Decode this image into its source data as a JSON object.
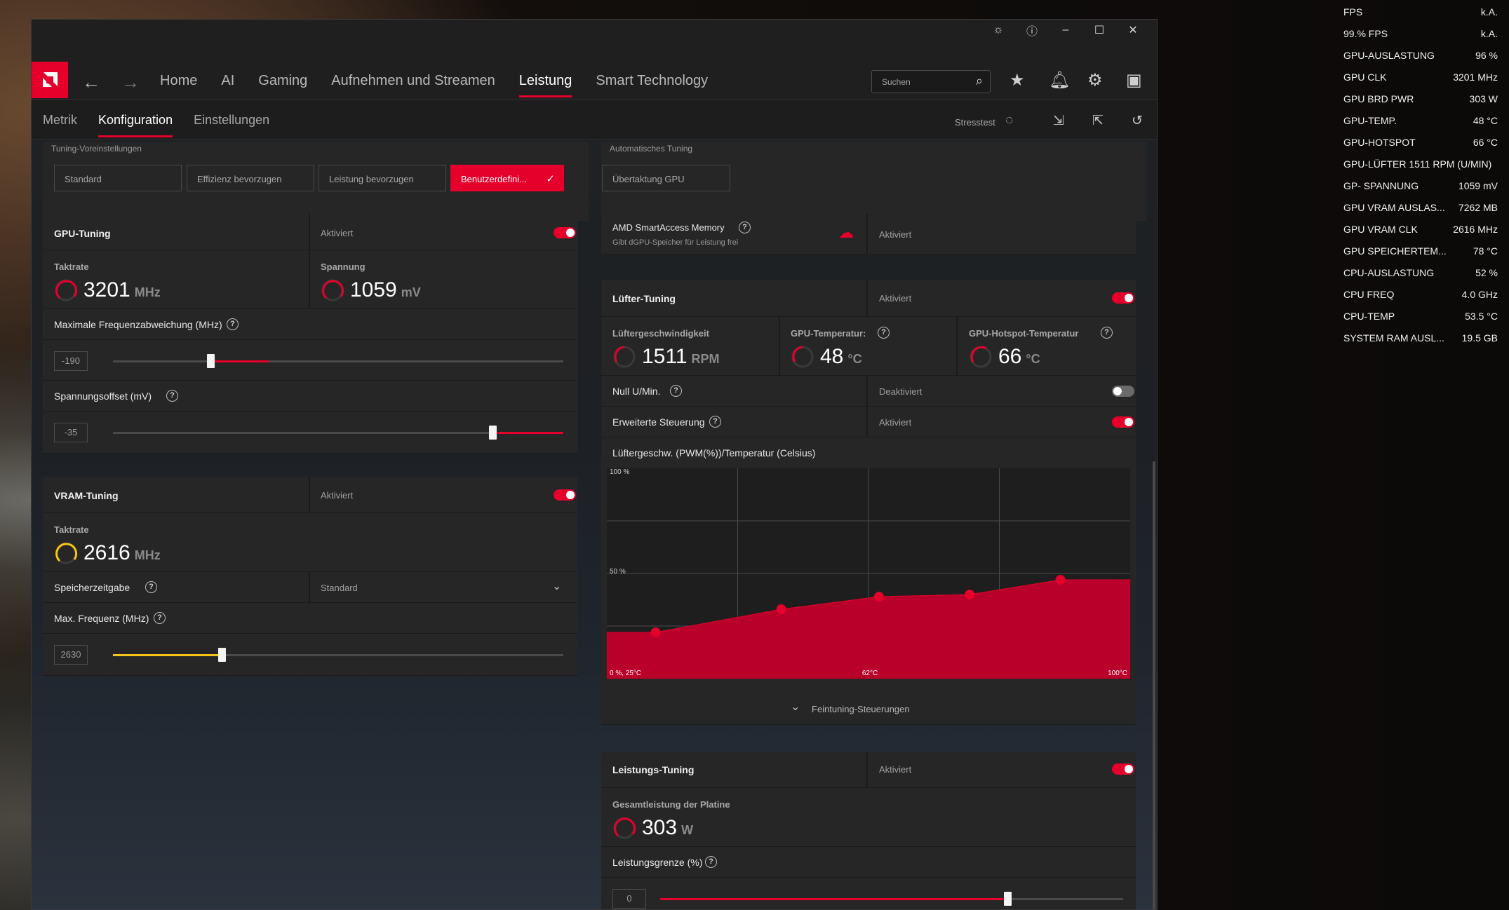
{
  "nav": {
    "items": [
      "Home",
      "AI",
      "Gaming",
      "Aufnehmen und Streamen",
      "Leistung",
      "Smart Technology"
    ],
    "active": "Leistung",
    "search_placeholder": "Suchen"
  },
  "subnav": {
    "items": [
      "Metrik",
      "Konfiguration",
      "Einstellungen"
    ],
    "active": "Konfiguration",
    "stresstest_label": "Stresstest"
  },
  "presets": {
    "title": "Tuning-Voreinstellungen",
    "buttons": [
      "Standard",
      "Effizienz bevorzugen",
      "Leistung bevorzugen",
      "Benutzerdefini..."
    ],
    "selected_index": 3
  },
  "auto_tuning": {
    "title": "Automatisches Tuning",
    "button": "Übertaktung GPU"
  },
  "gpu_tuning": {
    "title": "GPU-Tuning",
    "status": "Aktiviert",
    "enabled": true,
    "clock_label": "Taktrate",
    "clock_value": "3201",
    "clock_unit": "MHz",
    "voltage_label": "Spannung",
    "voltage_value": "1059",
    "voltage_unit": "mV",
    "freq_offset_label": "Maximale Frequenzabweichung (MHz)",
    "freq_offset_value": "-190",
    "freq_offset_fraction": 0.2,
    "voltage_offset_label": "Spannungsoffset (mV)",
    "voltage_offset_value": "-35",
    "voltage_offset_fraction": 0.82
  },
  "vram_tuning": {
    "title": "VRAM-Tuning",
    "status": "Aktiviert",
    "enabled": true,
    "clock_label": "Taktrate",
    "clock_value": "2616",
    "clock_unit": "MHz",
    "timing_label": "Speicherzeitgabe",
    "timing_value": "Standard",
    "max_freq_label": "Max. Frequenz (MHz)",
    "max_freq_value": "2630",
    "max_freq_fraction": 0.24
  },
  "sam": {
    "title": "AMD SmartAccess Memory",
    "subtitle": "Gibt dGPU-Speicher für Leistung frei",
    "status": "Aktiviert"
  },
  "fan_tuning": {
    "title": "Lüfter-Tuning",
    "status": "Aktiviert",
    "enabled": true,
    "fan_speed_label": "Lüftergeschwindigkeit",
    "fan_speed_value": "1511",
    "fan_speed_unit": "RPM",
    "gpu_temp_label": "GPU-Temperatur:",
    "gpu_temp_value": "48",
    "gpu_temp_unit": "°C",
    "hotspot_label": "GPU-Hotspot-Temperatur",
    "hotspot_value": "66",
    "hotspot_unit": "°C",
    "zero_rpm_label": "Null U/Min.",
    "zero_rpm_status": "Deaktiviert",
    "zero_rpm_enabled": false,
    "advanced_label": "Erweiterte Steuerung",
    "advanced_status": "Aktiviert",
    "advanced_enabled": true,
    "curve_title": "Lüftergeschw. (PWM(%))/Temperatur (Celsius)",
    "fine_tuning_label": "Feintuning-Steuerungen"
  },
  "chart_data": {
    "type": "area",
    "title": "Lüftergeschw. (PWM(%))/Temperatur (Celsius)",
    "y_tick_labels": [
      "100 %",
      "50 %"
    ],
    "x_tick_labels": [
      "0 %, 25°C",
      "62°C",
      "100°C"
    ],
    "xlim": [
      25,
      100
    ],
    "ylim": [
      0,
      100
    ],
    "x": [
      32,
      50,
      64,
      77,
      90
    ],
    "values": [
      22,
      33,
      39,
      40,
      47
    ],
    "grid": true,
    "color": "#e4002b"
  },
  "power_tuning": {
    "title": "Leistungs-Tuning",
    "status": "Aktiviert",
    "enabled": true,
    "board_power_label": "Gesamtleistung der Platine",
    "board_power_value": "303",
    "board_power_unit": "W",
    "limit_label": "Leistungsgrenze (%)",
    "limit_value": "0",
    "limit_fraction": 0.75
  },
  "osd": [
    {
      "k": "FPS",
      "v": "k.A."
    },
    {
      "k": "99.% FPS",
      "v": "k.A."
    },
    {
      "k": "GPU-AUSLASTUNG",
      "v": "96 %"
    },
    {
      "k": "GPU CLK",
      "v": "3201 MHz"
    },
    {
      "k": "GPU BRD PWR",
      "v": "303 W"
    },
    {
      "k": "GPU-TEMP.",
      "v": "48 °C"
    },
    {
      "k": "GPU-HOTSPOT",
      "v": "66 °C"
    },
    {
      "k": "GPU-LÜFTER  1511 RPM (U/MIN)",
      "v": ""
    },
    {
      "k": "GP- SPANNUNG",
      "v": "1059 mV"
    },
    {
      "k": "GPU VRAM AUSLAS...",
      "v": "7262 MB"
    },
    {
      "k": "GPU VRAM CLK",
      "v": "2616 MHz"
    },
    {
      "k": "GPU SPEICHERTEM...",
      "v": "78 °C"
    },
    {
      "k": "CPU-AUSLASTUNG",
      "v": "52 %"
    },
    {
      "k": "CPU FREQ",
      "v": "4.0 GHz"
    },
    {
      "k": "CPU-TEMP",
      "v": "53.5 °C"
    },
    {
      "k": "SYSTEM RAM AUSL...",
      "v": "19.5 GB"
    }
  ]
}
